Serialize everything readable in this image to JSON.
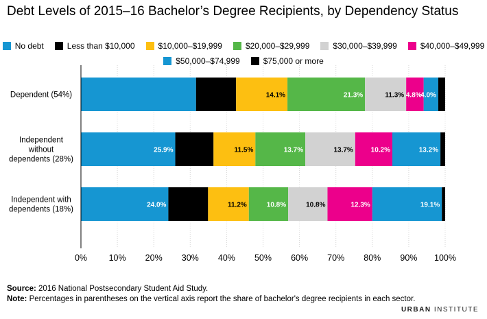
{
  "chart_data": {
    "type": "bar",
    "orientation": "horizontal",
    "stacked": true,
    "title": "Debt Levels of 2015–16 Bachelor’s Degree Recipients, by Dependency Status",
    "categories": [
      "Dependent (54%)",
      "Independent without dependents (28%)",
      "Independent with dependents (18%)"
    ],
    "category_lines": [
      [
        "Dependent (54%)"
      ],
      [
        "Independent",
        "without",
        "dependents (28%)"
      ],
      [
        "Independent with",
        "dependents (18%)"
      ]
    ],
    "series": [
      {
        "name": "No debt",
        "color": "#1696d2",
        "values": [
          31.6,
          25.9,
          24.0
        ],
        "labels": [
          "",
          "25.9%",
          "24.0%"
        ]
      },
      {
        "name": "Less than $10,000",
        "color": "#000000",
        "values": [
          11.0,
          10.5,
          10.9
        ],
        "labels": [
          "",
          "",
          ""
        ]
      },
      {
        "name": "$10,000–$19,999",
        "color": "#fdbf11",
        "values": [
          14.1,
          11.5,
          11.2
        ],
        "labels": [
          "14.1%",
          "11.5%",
          "11.2%"
        ]
      },
      {
        "name": "$20,000–$29,999",
        "color": "#55b748",
        "values": [
          21.3,
          13.7,
          10.8
        ],
        "labels": [
          "21.3%",
          "13.7%",
          "10.8%"
        ]
      },
      {
        "name": "$30,000–$39,999",
        "color": "#d2d2d2",
        "values": [
          11.3,
          13.7,
          10.8
        ],
        "labels": [
          "11.3%",
          "13.7%",
          "10.8%"
        ]
      },
      {
        "name": "$40,000–$49,999",
        "color": "#ec008b",
        "values": [
          4.8,
          10.2,
          12.3
        ],
        "labels": [
          "4.8%",
          "10.2%",
          "12.3%"
        ]
      },
      {
        "name": "$50,000–$74,999",
        "color": "#1696d2",
        "values": [
          4.0,
          13.2,
          19.1
        ],
        "labels": [
          "4.0%",
          "13.2%",
          "19.1%"
        ]
      },
      {
        "name": "$75,000 or more",
        "color": "#000000",
        "values": [
          1.9,
          1.3,
          0.9
        ],
        "labels": [
          "",
          "",
          ""
        ]
      }
    ],
    "label_colors": {
      "dark_text": "#000000",
      "light_text": "#ffffff"
    },
    "xlim": [
      0,
      100
    ],
    "xticks": [
      "0%",
      "10%",
      "20%",
      "30%",
      "40%",
      "50%",
      "60%",
      "70%",
      "80%",
      "90%",
      "100%"
    ],
    "legend": "top-center"
  },
  "footer": {
    "source_label": "Source:",
    "source_text": " 2016 National Postsecondary Student Aid Study.",
    "note_label": "Note:",
    "note_text": " Percentages in parentheses on the vertical axis report the share of bachelor's degree recipients in each sector."
  },
  "brand": {
    "part1": "URBAN",
    "part2": " INSTITUTE"
  }
}
